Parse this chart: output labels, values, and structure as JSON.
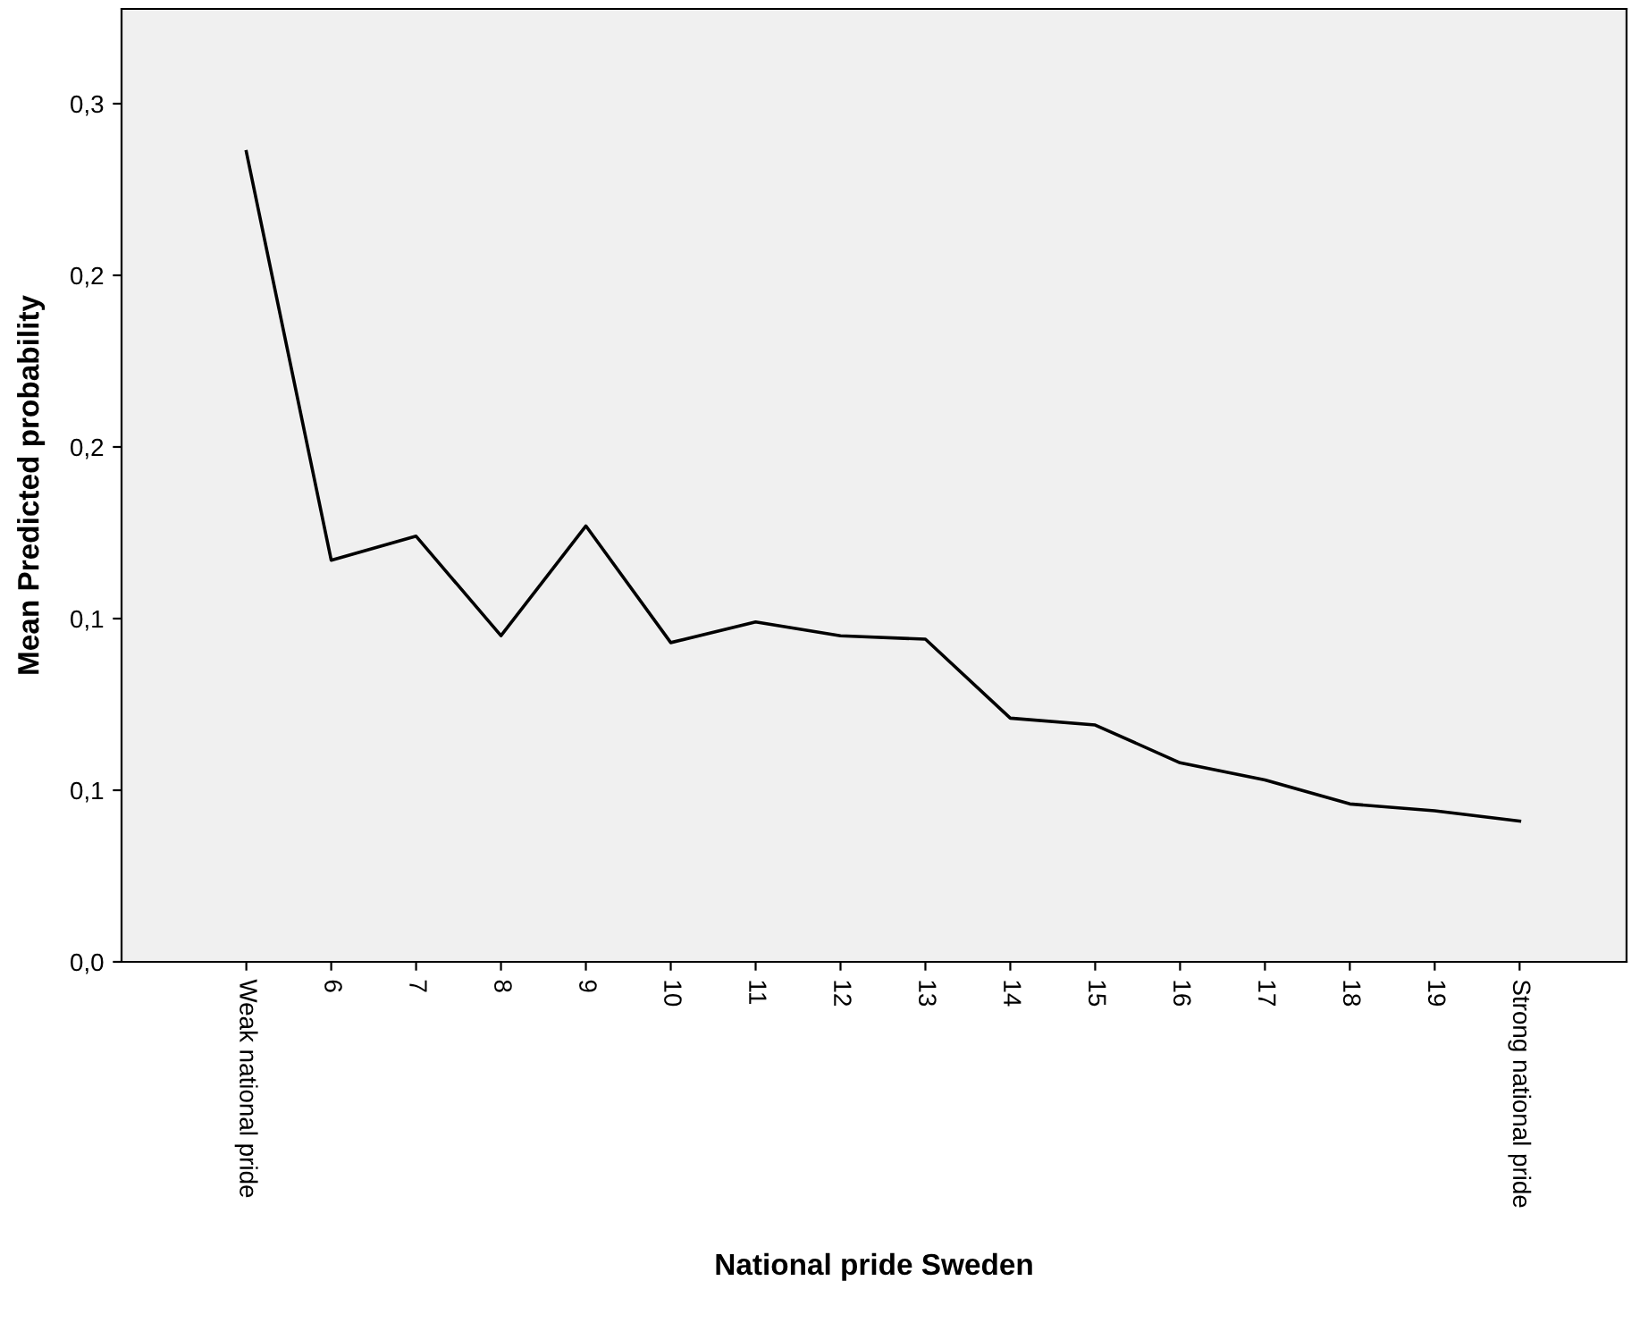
{
  "chart_data": {
    "type": "line",
    "xlabel": "National pride Sweden",
    "ylabel": "Mean Predicted probability",
    "categories": [
      "Weak national pride",
      "6",
      "7",
      "8",
      "9",
      "10",
      "11",
      "12",
      "13",
      "14",
      "15",
      "16",
      "17",
      "18",
      "19",
      "Strong national pride"
    ],
    "series": [
      {
        "color": "#000000",
        "values": [
          0.236,
          0.117,
          0.124,
          0.095,
          0.127,
          0.093,
          0.099,
          0.095,
          0.094,
          0.071,
          0.069,
          0.058,
          0.053,
          0.046,
          0.044,
          0.041
        ]
      }
    ],
    "ylim": [
      0,
      0.2776
    ],
    "yticks": [
      {
        "value": 0,
        "label": "0,0"
      },
      {
        "value": 0.05,
        "label": "0,1"
      },
      {
        "value": 0.1,
        "label": "0,1"
      },
      {
        "value": 0.15,
        "label": "0,2"
      },
      {
        "value": 0.2,
        "label": "0,2"
      },
      {
        "value": 0.25,
        "label": "0,3"
      }
    ],
    "grid": false,
    "legend": false,
    "marker": "none",
    "line_style": "solid"
  }
}
